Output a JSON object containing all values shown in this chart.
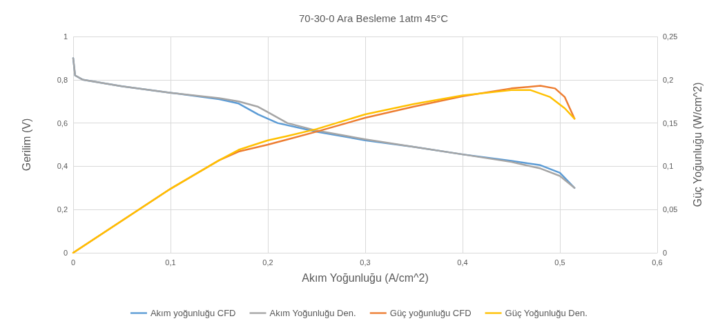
{
  "chart_data": {
    "type": "line",
    "title": "70-30-0 Ara Besleme 1atm 45°C",
    "xlabel": "Akım Yoğunluğu (A/cm^2)",
    "ylabel": "Gerilim (V)",
    "y2label": "Güç Yoğunluğu (W/cm^2)",
    "xlim": [
      0,
      0.6
    ],
    "xticks": [
      0,
      {
        "value": 0.1,
        "label": "0,1"
      },
      {
        "value": 0.2,
        "label": "0,2"
      },
      {
        "value": 0.3,
        "label": "0,3"
      },
      {
        "value": 0.4,
        "label": "0,4"
      },
      {
        "value": 0.5,
        "label": "0,5"
      },
      {
        "value": 0.6,
        "label": "0,6"
      }
    ],
    "ylim": [
      0,
      1
    ],
    "yticks": [
      0,
      {
        "value": 0.2,
        "label": "0,2"
      },
      {
        "value": 0.4,
        "label": "0,4"
      },
      {
        "value": 0.6,
        "label": "0,6"
      },
      {
        "value": 0.8,
        "label": "0,8"
      },
      1
    ],
    "y2lim": [
      0,
      0.25
    ],
    "y2ticks": [
      0,
      {
        "value": 0.05,
        "label": "0,05"
      },
      {
        "value": 0.1,
        "label": "0,1"
      },
      {
        "value": 0.15,
        "label": "0,15"
      },
      {
        "value": 0.2,
        "label": "0,2"
      },
      {
        "value": 0.25,
        "label": "0,25"
      }
    ],
    "grid": true,
    "legend": "bottom",
    "marker": "none",
    "line_style": "solid",
    "series": [
      {
        "name": "Akım yoğunluğu CFD",
        "color": "#5b9bd5",
        "x": [
          0,
          0.002,
          0.01,
          0.05,
          0.1,
          0.15,
          0.17,
          0.19,
          0.21,
          0.25,
          0.3,
          0.35,
          0.4,
          0.45,
          0.48,
          0.5,
          0.515
        ],
        "values": [
          0.9,
          0.82,
          0.8,
          0.77,
          0.74,
          0.71,
          0.69,
          0.64,
          0.6,
          0.56,
          0.52,
          0.49,
          0.455,
          0.425,
          0.405,
          0.37,
          0.3
        ]
      },
      {
        "name": "Akım Yoğunluğu Den.",
        "color": "#a5a5a5",
        "x": [
          0,
          0.002,
          0.01,
          0.05,
          0.1,
          0.15,
          0.17,
          0.19,
          0.2,
          0.22,
          0.25,
          0.3,
          0.35,
          0.4,
          0.45,
          0.48,
          0.5,
          0.515
        ],
        "values": [
          0.9,
          0.82,
          0.8,
          0.77,
          0.74,
          0.715,
          0.7,
          0.675,
          0.65,
          0.6,
          0.565,
          0.525,
          0.49,
          0.455,
          0.42,
          0.39,
          0.355,
          0.3
        ]
      },
      {
        "name": "Güç yoğunluğu CFD",
        "color": "#ed7d31",
        "axis": "y2",
        "x": [
          0,
          0.1,
          0.15,
          0.17,
          0.2,
          0.22,
          0.25,
          0.3,
          0.35,
          0.4,
          0.45,
          0.48,
          0.495,
          0.505,
          0.515
        ],
        "values": [
          0,
          0.074,
          0.107,
          0.117,
          0.125,
          0.131,
          0.14,
          0.156,
          0.169,
          0.181,
          0.19,
          0.193,
          0.19,
          0.18,
          0.155
        ]
      },
      {
        "name": "Güç Yoğunluğu Den.",
        "color": "#ffc000",
        "axis": "y2",
        "x": [
          0,
          0.1,
          0.15,
          0.17,
          0.2,
          0.22,
          0.25,
          0.3,
          0.35,
          0.4,
          0.45,
          0.47,
          0.49,
          0.505,
          0.515
        ],
        "values": [
          0,
          0.074,
          0.107,
          0.119,
          0.13,
          0.135,
          0.143,
          0.16,
          0.172,
          0.182,
          0.188,
          0.188,
          0.18,
          0.167,
          0.155
        ]
      }
    ]
  }
}
